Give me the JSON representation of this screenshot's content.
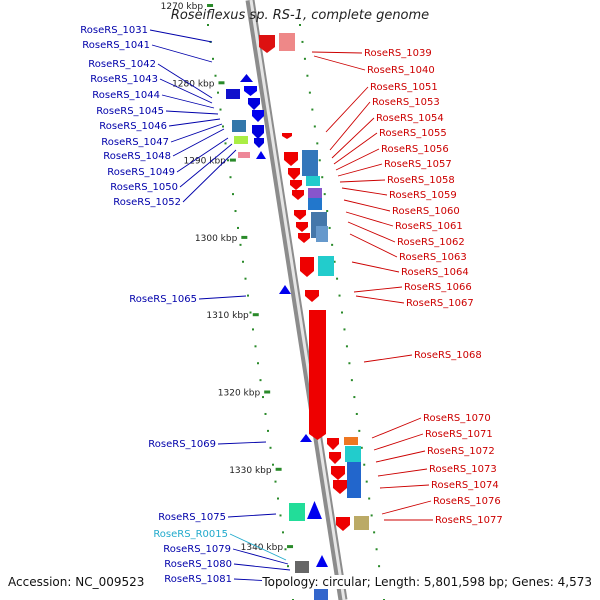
{
  "title": "Roseiflexus sp. RS-1, complete genome",
  "footer": {
    "accession": "Accession: NC_009523",
    "summary": "Topology: circular; Length: 5,801,598 bp; Genes: 4,573"
  },
  "colors": {
    "forward_label": "#0000aa",
    "reverse_label": "#cc0000",
    "rna_label": "#22aacc",
    "tick": "#2a8a2a",
    "backbone": "#999999"
  },
  "scale": {
    "unit": "kbp",
    "ticks": [
      {
        "kbp": 1270,
        "label": "1270 kbp"
      },
      {
        "kbp": 1280,
        "label": "1280 kbp"
      },
      {
        "kbp": 1290,
        "label": "1290 kbp"
      },
      {
        "kbp": 1300,
        "label": "1300 kbp"
      },
      {
        "kbp": 1310,
        "label": "1310 kbp"
      },
      {
        "kbp": 1320,
        "label": "1320 kbp"
      },
      {
        "kbp": 1330,
        "label": "1330 kbp"
      },
      {
        "kbp": 1340,
        "label": "1340 kbp"
      }
    ]
  },
  "forward_genes": [
    "RoseRS_1031",
    "RoseRS_1041",
    "RoseRS_1042",
    "RoseRS_1043",
    "RoseRS_1044",
    "RoseRS_1045",
    "RoseRS_1046",
    "RoseRS_1047",
    "RoseRS_1048",
    "RoseRS_1049",
    "RoseRS_1050",
    "RoseRS_1052",
    "RoseRS_1065",
    "RoseRS_1069",
    "RoseRS_1075",
    "RoseRS_R0015",
    "RoseRS_1079",
    "RoseRS_1080",
    "RoseRS_1081"
  ],
  "reverse_genes": [
    "RoseRS_1039",
    "RoseRS_1040",
    "RoseRS_1051",
    "RoseRS_1053",
    "RoseRS_1054",
    "RoseRS_1055",
    "RoseRS_1056",
    "RoseRS_1057",
    "RoseRS_1058",
    "RoseRS_1059",
    "RoseRS_1060",
    "RoseRS_1061",
    "RoseRS_1062",
    "RoseRS_1063",
    "RoseRS_1064",
    "RoseRS_1066",
    "RoseRS_1067",
    "RoseRS_1068",
    "RoseRS_1070",
    "RoseRS_1071",
    "RoseRS_1072",
    "RoseRS_1073",
    "RoseRS_1074",
    "RoseRS_1076",
    "RoseRS_1077"
  ]
}
